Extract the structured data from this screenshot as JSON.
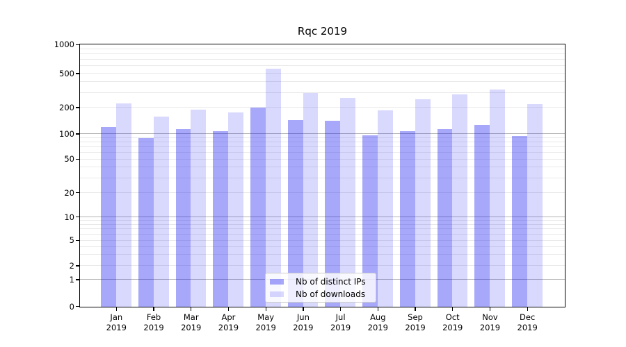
{
  "title": "Rqc 2019",
  "chart_data": {
    "type": "bar",
    "title": "Rqc 2019",
    "categories": [
      "Jan 2019",
      "Feb 2019",
      "Mar 2019",
      "Apr 2019",
      "May 2019",
      "Jun 2019",
      "Jul 2019",
      "Aug 2019",
      "Sep 2019",
      "Oct 2019",
      "Nov 2019",
      "Dec 2019"
    ],
    "series": [
      {
        "name": "Nb of distinct IPs",
        "color": "rgba(15,15,240,0.36)",
        "values": [
          120,
          90,
          115,
          109,
          200,
          145,
          142,
          97,
          108,
          115,
          127,
          95
        ]
      },
      {
        "name": "Nb of downloads",
        "color": "rgba(15,15,240,0.155)",
        "values": [
          225,
          158,
          190,
          177,
          560,
          300,
          260,
          188,
          250,
          285,
          325,
          220
        ]
      }
    ],
    "yscale": "symlog",
    "ylim": [
      0,
      1000
    ],
    "yticks": [
      0,
      1,
      2,
      5,
      10,
      20,
      50,
      100,
      200,
      500,
      1000
    ],
    "major_grid_values": [
      1,
      10,
      100
    ],
    "grid": true,
    "legend_position": "lower center",
    "scale_anchors": [
      [
        0,
        0
      ],
      [
        1,
        0.1026
      ],
      [
        2,
        0.1553
      ],
      [
        5,
        0.2526
      ],
      [
        10,
        0.3421
      ],
      [
        20,
        0.435
      ],
      [
        50,
        0.5624
      ],
      [
        100,
        0.6587
      ],
      [
        200,
        0.7597
      ],
      [
        500,
        0.8895
      ],
      [
        1000,
        1.0
      ]
    ],
    "colors": {
      "major_grid": "#b3b3b3",
      "minor_grid": "#e9e9e9",
      "spine": "#000000"
    }
  }
}
